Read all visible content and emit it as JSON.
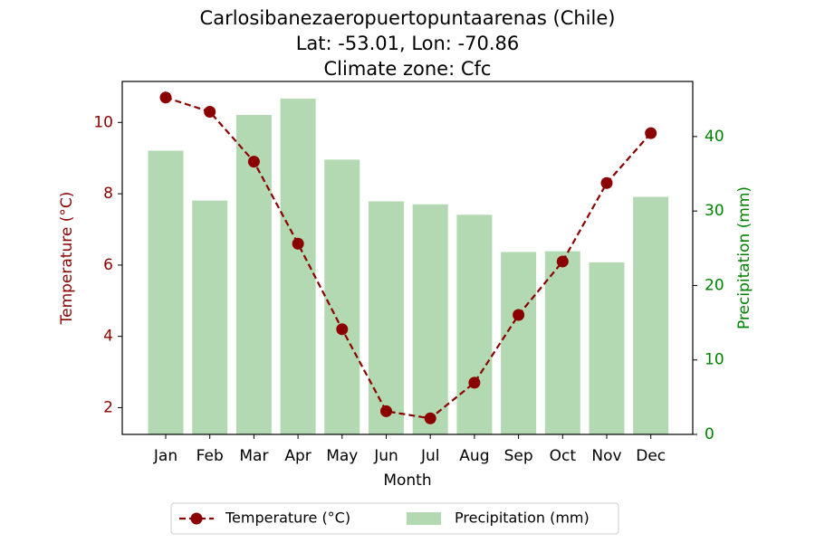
{
  "chart_data": {
    "type": "bar",
    "title": [
      "Carlosibanezaeropuertopuntaarenas (Chile)",
      "Lat: -53.01, Lon: -70.86",
      "Climate zone: Cfc"
    ],
    "xlabel": "Month",
    "categories": [
      "Jan",
      "Feb",
      "Mar",
      "Apr",
      "May",
      "Jun",
      "Jul",
      "Aug",
      "Sep",
      "Oct",
      "Nov",
      "Dec"
    ],
    "series": [
      {
        "name": "Temperature (°C)",
        "type": "line",
        "axis": "left",
        "color": "#8b0000",
        "line_style": "dashed",
        "marker": "circle",
        "values": [
          10.7,
          10.3,
          8.9,
          6.6,
          4.2,
          1.9,
          1.7,
          2.7,
          4.6,
          6.1,
          8.3,
          9.7
        ]
      },
      {
        "name": "Precipitation (mm)",
        "type": "bar",
        "axis": "right",
        "color": "#b2d9b2",
        "values": [
          38.1,
          31.4,
          42.9,
          45.1,
          36.9,
          31.3,
          30.9,
          29.5,
          24.5,
          24.6,
          23.1,
          31.9
        ]
      }
    ],
    "y_left": {
      "label": "Temperature (°C)",
      "color": "#8b0000",
      "range": [
        1.25,
        11.15
      ],
      "ticks": [
        2,
        4,
        6,
        8,
        10
      ]
    },
    "y_right": {
      "label": "Precipitation (mm)",
      "color": "#008000",
      "range": [
        0,
        47.4
      ],
      "ticks": [
        0,
        10,
        20,
        30,
        40
      ]
    },
    "legend_position": "bottom-center",
    "grid": false
  }
}
